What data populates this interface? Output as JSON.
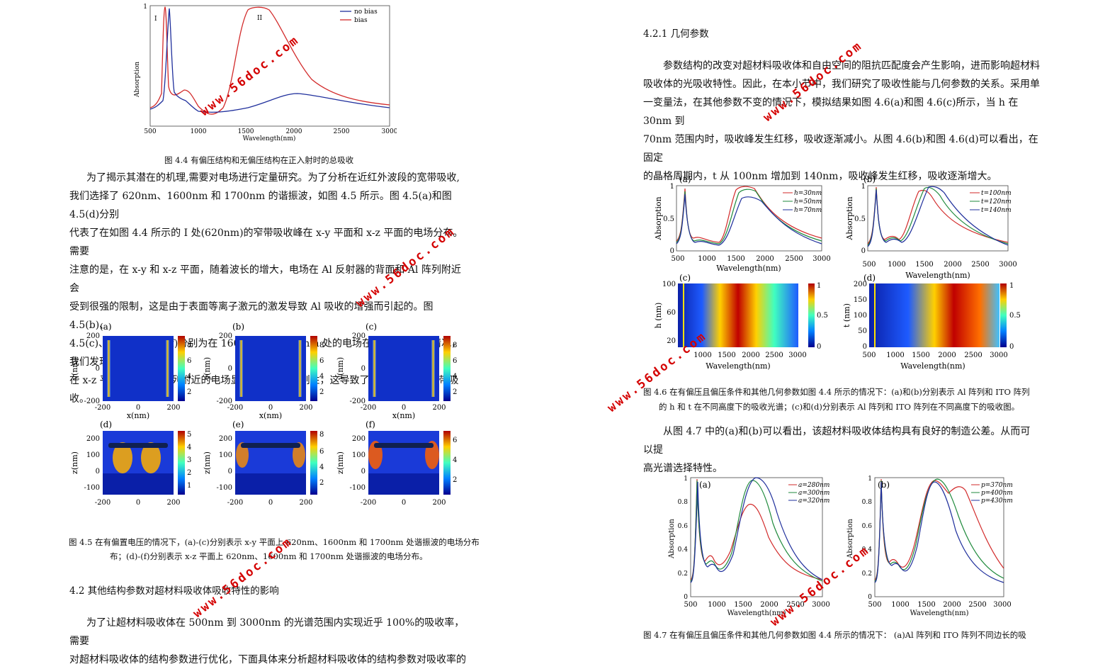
{
  "left": {
    "fig44": {
      "caption": "图 4.4 有偏压结构和无偏压结构在正入射时的总吸收",
      "ylabel": "Absorption",
      "xlabel": "Wavelength(nm)",
      "xticks": [
        "500",
        "1000",
        "1500",
        "2000",
        "2500",
        "3000"
      ],
      "yticks": [
        "1"
      ],
      "legend": [
        "no bias",
        "bias"
      ],
      "marks": [
        "I",
        "II"
      ],
      "colors": {
        "no_bias": "#1f2f9c",
        "bias": "#d22a2a"
      }
    },
    "para1": [
      "为了揭示其潜在的机理,需要对电场进行定量研究。为了分析在近红外波段的宽带吸收,",
      "我们选择了 620nm、1600nm 和 1700nm 的谐振波，如图 4.5 所示。图 4.5(a)和图 4.5(d)分别",
      "代表了在如图 4.4 所示的 I 处(620nm)的窄带吸收峰在 x-y 平面和 x-z 平面的电场分布。需要",
      "注意的是，在 x-y 和 x-z 平面，随着波长的增大，电场在 Al 反射器的背面和 Al 阵列附近会",
      "受到很强的限制，这是由于表面等离子激元的激发导致 Al 吸收的增强而引起的。图 4.5(b)、",
      "4.5(c)、4.5(e)和 4.5(f)分别为在 1600nm 和 1700nm 处的电场在不同平面分布情况，我们发现",
      "在 x-z 平面上，ITO 阵列附近的电场显示出很强的限制性，这导致了近红外波段的宽带吸收。"
    ],
    "fig45": {
      "panels": [
        "(a)",
        "(b)",
        "(c)",
        "(d)",
        "(e)",
        "(f)"
      ],
      "ylabel_top": "y(nm)",
      "ylabel_bottom": "z(nm)",
      "xlabel": "x(nm)",
      "xticks": [
        "-200",
        "0",
        "200"
      ],
      "yticks_top": [
        "200",
        "0",
        "-200"
      ],
      "yticks_bottom": [
        "200",
        "100",
        "0",
        "-100"
      ],
      "cbar_a": [
        "8",
        "6",
        "4",
        "2"
      ],
      "cbar_d": [
        "5",
        "4",
        "3",
        "2",
        "1"
      ],
      "cbar_e": [
        "8",
        "6",
        "4",
        "2"
      ],
      "cbar_f": [
        "6",
        "4",
        "2"
      ],
      "caption1": "图 4.5 在有偏置电压的情况下，(a)-(c)分别表示 x-y 平面上 620nm、1600nm 和 1700nm 处谐振波的电场分布",
      "caption2": "布；(d)-(f)分别表示 x-z 平面上 620nm、1600nm 和 1700nm 处谐振波的电场分布。"
    },
    "section": "4.2 其他结构参数对超材料吸收体吸收特性的影响",
    "para2": [
      "为了让超材料吸收体在 500nm 到 3000nm 的光谱范围内实现近乎 100%的吸收率，需要",
      "对超材料吸收体的结构参数进行优化，下面具体来分析超材料吸收体的结构参数对吸收率的"
    ]
  },
  "right": {
    "subsection": "4.2.1 几何参数",
    "para1": [
      "参数结构的改变对超材料吸收体和自由空间的阻抗匹配度会产生影响，进而影响超材料",
      "吸收体的光吸收特性。因此，在本小节中，我们研究了吸收性能与几何参数的关系。采用单",
      "一变量法，在其他参数不变的情况下，模拟结果如图 4.6(a)和图 4.6(c)所示，当 h 在 30nm 到",
      "70nm 范围内时，吸收峰发生红移，吸收逐渐减小。从图 4.6(b)和图 4.6(d)可以看出，在固定",
      "的晶格周期内，t 从 100nm 增加到 140nm，吸收峰发生红移，吸收逐渐增大。"
    ],
    "fig46": {
      "panels": [
        "(a)",
        "(b)",
        "(c)",
        "(d)"
      ],
      "ylabel": "Absorption",
      "xlabel": "Wavelength(nm)",
      "xticks": [
        "500",
        "1000",
        "1500",
        "2000",
        "2500",
        "3000"
      ],
      "yticks": [
        "1",
        "0.5",
        "0"
      ],
      "legend_a": [
        "h=30nm",
        "h=50nm",
        "h=70nm"
      ],
      "legend_b": [
        "t=100nm",
        "t=120nm",
        "t=140nm"
      ],
      "ylabel_c": "h (nm)",
      "yticks_c": [
        "100",
        "60",
        "20"
      ],
      "ylabel_d": "t (nm)",
      "yticks_d": [
        "200",
        "150",
        "100",
        "50",
        "0"
      ],
      "cbar": [
        "1",
        "0.5",
        "0"
      ],
      "caption1": "图 4.6 在有偏压且偏压条件和其他几何参数如图 4.4 所示的情况下：(a)和(b)分别表示 Al 阵列和 ITO 阵列",
      "caption2": "的 h 和 t 在不同高度下的吸收光谱；(c)和(d)分别表示 Al 阵列和 ITO 阵列在不同高度下的吸收图。"
    },
    "para2": [
      "从图 4.7 中的(a)和(b)可以看出，该超材料吸收体结构具有良好的制造公差。从而可以提",
      "高光谱选择特性。"
    ],
    "fig47": {
      "panels": [
        "(a)",
        "(b)"
      ],
      "ylabel": "Absorption",
      "xlabel": "Wavelength(nm)",
      "xticks": [
        "500",
        "1000",
        "1500",
        "2000",
        "2500",
        "3000"
      ],
      "yticks": [
        "1",
        "0.8",
        "0.6",
        "0.4",
        "0.2",
        "0"
      ],
      "legend_a": [
        "a=280nm",
        "a=300nm",
        "a=320nm"
      ],
      "legend_b": [
        "p=370nm",
        "p=400nm",
        "p=430nm"
      ],
      "caption": "图 4.7 在有偏压且偏压条件和其他几何参数如图 4.4 所示的情况下：  (a)Al 阵列和 ITO 阵列不同边长的吸"
    }
  },
  "watermark": "www.56doc.com"
}
